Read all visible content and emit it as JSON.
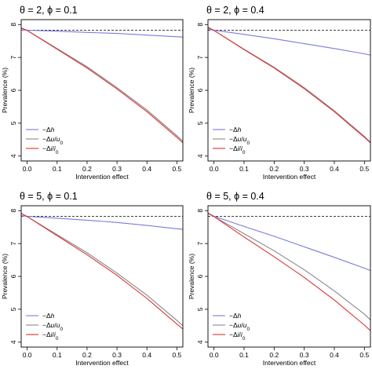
{
  "chart_data": [
    {
      "type": "line",
      "title": "θ = 2, ϕ = 0.1",
      "xlabel": "Intervention effect",
      "ylabel": "Prevalence (%)",
      "xlim": [
        -0.02,
        0.52
      ],
      "ylim": [
        3.85,
        8.15
      ],
      "xticks": [
        0.0,
        0.1,
        0.2,
        0.3,
        0.4,
        0.5
      ],
      "xtick_labels": [
        "0.0",
        "0.1",
        "0.2",
        "0.3",
        "0.4",
        "0.5"
      ],
      "yticks": [
        4,
        5,
        6,
        7,
        8
      ],
      "ytick_labels": [
        "4",
        "5",
        "6",
        "7",
        "8"
      ],
      "baseline": {
        "y": 7.83,
        "style": "dashed",
        "color": "#000000"
      },
      "legend": {
        "position": "bottom-left",
        "entries": [
          "−Δh",
          "−Δu/u₀",
          "−Δi/i₀"
        ]
      },
      "series": [
        {
          "name": "−Δh",
          "color": "#7b7bdd",
          "x": [
            -0.02,
            0.0,
            0.1,
            0.2,
            0.3,
            0.4,
            0.5,
            0.52
          ],
          "y": [
            7.84,
            7.83,
            7.8,
            7.76,
            7.73,
            7.68,
            7.63,
            7.62
          ]
        },
        {
          "name": "−Δu/u₀",
          "color": "#888888",
          "x": [
            -0.02,
            0.0,
            0.1,
            0.2,
            0.3,
            0.4,
            0.5,
            0.52
          ],
          "y": [
            7.9,
            7.82,
            7.27,
            6.72,
            6.08,
            5.4,
            4.62,
            4.45
          ]
        },
        {
          "name": "−Δi/i₀",
          "color": "#dd3333",
          "x": [
            -0.02,
            0.0,
            0.1,
            0.2,
            0.3,
            0.4,
            0.5,
            0.52
          ],
          "y": [
            7.9,
            7.82,
            7.25,
            6.68,
            6.04,
            5.35,
            4.57,
            4.4
          ]
        }
      ]
    },
    {
      "type": "line",
      "title": "θ = 2, ϕ = 0.4",
      "xlabel": "Intervention effect",
      "ylabel": "Prevalence (%)",
      "xlim": [
        -0.02,
        0.52
      ],
      "ylim": [
        3.85,
        8.15
      ],
      "xticks": [
        0.0,
        0.1,
        0.2,
        0.3,
        0.4,
        0.5
      ],
      "xtick_labels": [
        "0.0",
        "0.1",
        "0.2",
        "0.3",
        "0.4",
        "0.5"
      ],
      "yticks": [
        4,
        5,
        6,
        7,
        8
      ],
      "ytick_labels": [
        "4",
        "5",
        "6",
        "7",
        "8"
      ],
      "baseline": {
        "y": 7.83,
        "style": "dashed",
        "color": "#000000"
      },
      "legend": {
        "position": "bottom-left",
        "entries": [
          "−Δh",
          "−Δu/u₀",
          "−Δi/i₀"
        ]
      },
      "series": [
        {
          "name": "−Δh",
          "color": "#7b7bdd",
          "x": [
            -0.02,
            0.0,
            0.1,
            0.2,
            0.3,
            0.4,
            0.5,
            0.52
          ],
          "y": [
            7.87,
            7.83,
            7.7,
            7.57,
            7.42,
            7.27,
            7.11,
            7.07
          ]
        },
        {
          "name": "−Δu/u₀",
          "color": "#888888",
          "x": [
            -0.02,
            0.0,
            0.1,
            0.2,
            0.3,
            0.4,
            0.5,
            0.52
          ],
          "y": [
            7.92,
            7.82,
            7.25,
            6.7,
            6.08,
            5.38,
            4.6,
            4.42
          ]
        },
        {
          "name": "−Δi/i₀",
          "color": "#dd3333",
          "x": [
            -0.02,
            0.0,
            0.1,
            0.2,
            0.3,
            0.4,
            0.5,
            0.52
          ],
          "y": [
            7.92,
            7.82,
            7.24,
            6.68,
            6.05,
            5.35,
            4.57,
            4.4
          ]
        }
      ]
    },
    {
      "type": "line",
      "title": "θ = 5, ϕ = 0.1",
      "xlabel": "Intervention effect",
      "ylabel": "Prevalence (%)",
      "xlim": [
        -0.02,
        0.52
      ],
      "ylim": [
        3.85,
        8.15
      ],
      "xticks": [
        0.0,
        0.1,
        0.2,
        0.3,
        0.4,
        0.5
      ],
      "xtick_labels": [
        "0.0",
        "0.1",
        "0.2",
        "0.3",
        "0.4",
        "0.5"
      ],
      "yticks": [
        4,
        5,
        6,
        7,
        8
      ],
      "ytick_labels": [
        "4",
        "5",
        "6",
        "7",
        "8"
      ],
      "baseline": {
        "y": 7.83,
        "style": "dashed",
        "color": "#000000"
      },
      "legend": {
        "position": "bottom-left",
        "entries": [
          "−Δh",
          "−Δu/u₀",
          "−Δi/i₀"
        ]
      },
      "series": [
        {
          "name": "−Δh",
          "color": "#7b7bdd",
          "x": [
            -0.02,
            0.0,
            0.1,
            0.2,
            0.3,
            0.4,
            0.5,
            0.52
          ],
          "y": [
            7.85,
            7.83,
            7.77,
            7.71,
            7.64,
            7.55,
            7.45,
            7.43
          ]
        },
        {
          "name": "−Δu/u₀",
          "color": "#888888",
          "x": [
            -0.02,
            0.0,
            0.1,
            0.2,
            0.3,
            0.4,
            0.5,
            0.52
          ],
          "y": [
            7.92,
            7.82,
            7.27,
            6.72,
            6.1,
            5.43,
            4.66,
            4.5
          ]
        },
        {
          "name": "−Δi/i₀",
          "color": "#dd3333",
          "x": [
            -0.02,
            0.0,
            0.1,
            0.2,
            0.3,
            0.4,
            0.5,
            0.52
          ],
          "y": [
            7.92,
            7.82,
            7.24,
            6.66,
            6.03,
            5.33,
            4.55,
            4.4
          ]
        }
      ]
    },
    {
      "type": "line",
      "title": "θ = 5, ϕ = 0.4",
      "xlabel": "Intervention effect",
      "ylabel": "Prevalence (%)",
      "xlim": [
        -0.02,
        0.52
      ],
      "ylim": [
        3.85,
        8.15
      ],
      "xticks": [
        0.0,
        0.1,
        0.2,
        0.3,
        0.4,
        0.5
      ],
      "xtick_labels": [
        "0.0",
        "0.1",
        "0.2",
        "0.3",
        "0.4",
        "0.5"
      ],
      "yticks": [
        4,
        5,
        6,
        7,
        8
      ],
      "ytick_labels": [
        "4",
        "5",
        "6",
        "7",
        "8"
      ],
      "baseline": {
        "y": 7.83,
        "style": "dashed",
        "color": "#000000"
      },
      "legend": {
        "position": "bottom-left",
        "entries": [
          "−Δh",
          "−Δu/u₀",
          "−Δi/i₀"
        ]
      },
      "series": [
        {
          "name": "−Δh",
          "color": "#7b7bdd",
          "x": [
            -0.02,
            0.0,
            0.1,
            0.2,
            0.3,
            0.4,
            0.5,
            0.52
          ],
          "y": [
            7.93,
            7.83,
            7.52,
            7.22,
            6.9,
            6.58,
            6.25,
            6.18
          ]
        },
        {
          "name": "−Δu/u₀",
          "color": "#888888",
          "x": [
            -0.02,
            0.0,
            0.1,
            0.2,
            0.3,
            0.4,
            0.5,
            0.52
          ],
          "y": [
            7.92,
            7.82,
            7.3,
            6.78,
            6.2,
            5.56,
            4.85,
            4.68
          ]
        },
        {
          "name": "−Δi/i₀",
          "color": "#dd3333",
          "x": [
            -0.02,
            0.0,
            0.1,
            0.2,
            0.3,
            0.4,
            0.5,
            0.52
          ],
          "y": [
            7.92,
            7.82,
            7.2,
            6.6,
            5.97,
            5.28,
            4.52,
            4.35
          ]
        }
      ]
    }
  ]
}
